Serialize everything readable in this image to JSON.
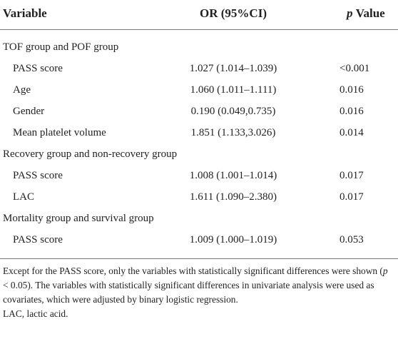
{
  "header": {
    "variable": "Variable",
    "or": "OR (95%CI)",
    "p_italic": "p",
    "p_rest": "Value"
  },
  "sections": [
    {
      "title": "TOF group and POF group",
      "rows": [
        [
          "PASS score",
          "1.027 (1.014–1.039)",
          "<0.001"
        ],
        [
          "Age",
          "1.060 (1.011–1.111)",
          "0.016"
        ],
        [
          "Gender",
          "0.190 (0.049,0.735)",
          "0.016"
        ],
        [
          "Mean platelet volume",
          "1.851 (1.133,3.026)",
          "0.014"
        ]
      ]
    },
    {
      "title": "Recovery group and non-recovery group",
      "rows": [
        [
          "PASS score",
          "1.008 (1.001–1.014)",
          "0.017"
        ],
        [
          "LAC",
          "1.611 (1.090–2.380)",
          "0.017"
        ]
      ]
    },
    {
      "title": "Mortality group and survival group",
      "rows": [
        [
          "PASS score",
          "1.009 (1.000–1.019)",
          "0.053"
        ]
      ]
    }
  ],
  "footnote": {
    "parts": [
      "Except for the PASS score, only the variables with statistically significant differences were shown (",
      "p",
      " < 0.05). The variables with statistically significant differences in univariate analysis were used as covariates, which were adjusted by binary logistic regression."
    ],
    "abbrev": "LAC, lactic acid."
  }
}
